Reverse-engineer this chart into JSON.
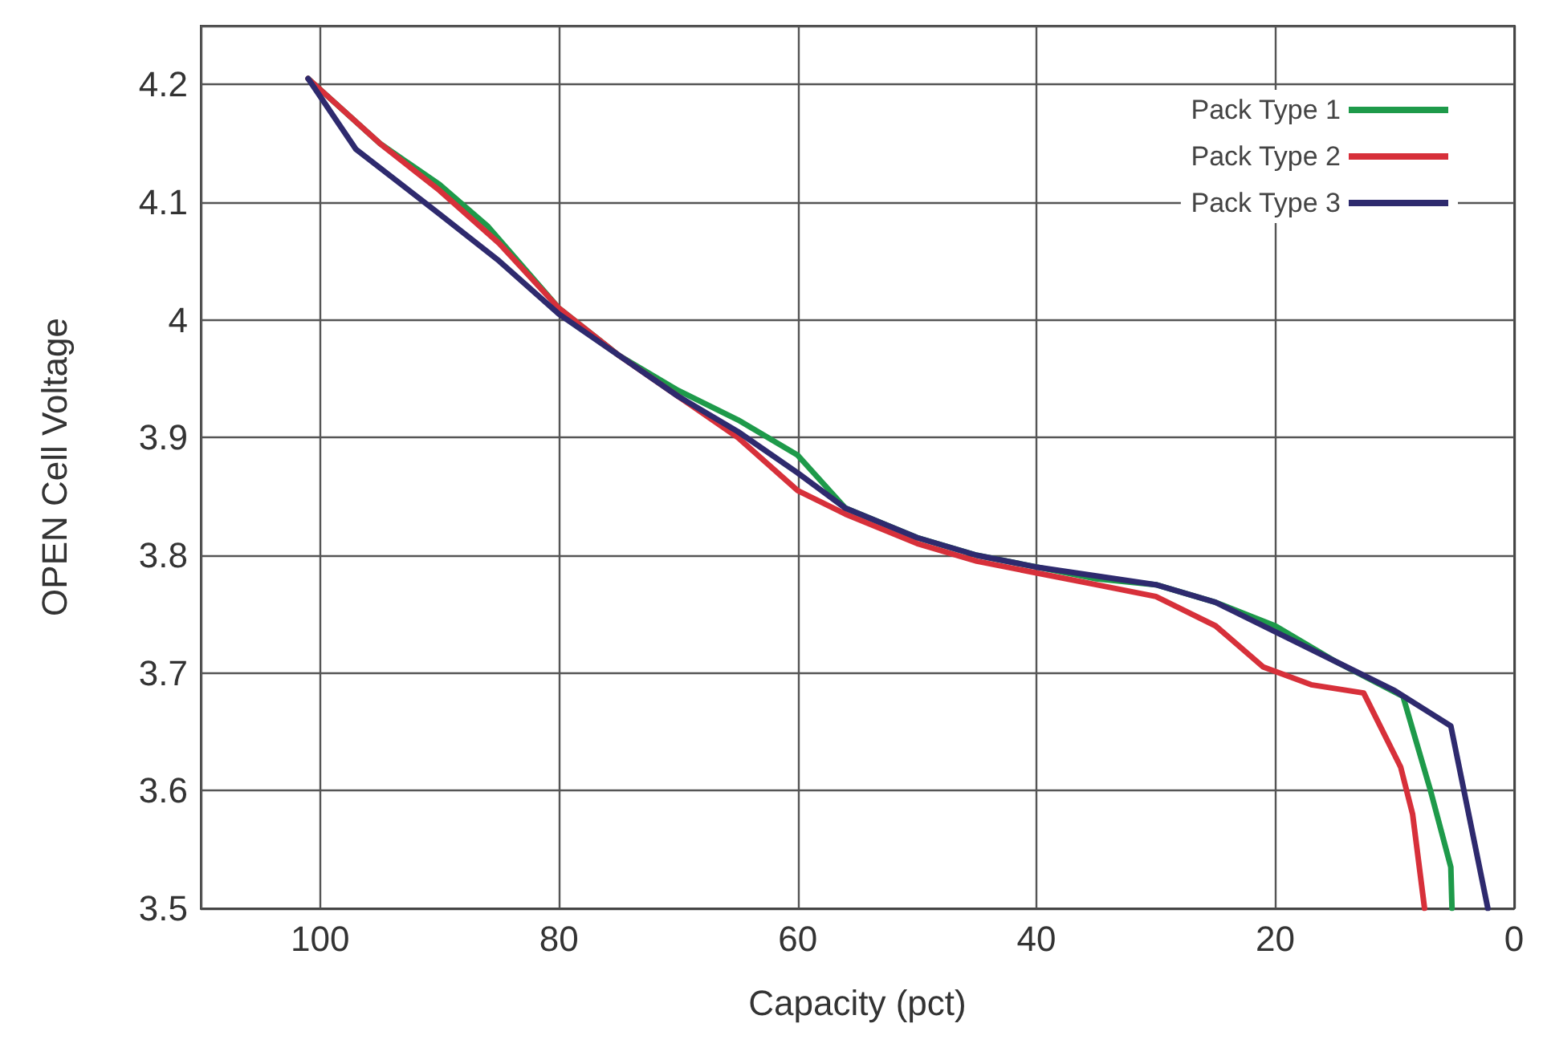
{
  "chart_data": {
    "type": "line",
    "xlabel": "Capacity (pct)",
    "ylabel": "OPEN Cell Voltage",
    "xlim": [
      110,
      0
    ],
    "xticks": [
      100,
      80,
      60,
      40,
      20,
      0
    ],
    "ylim": [
      3.5,
      4.25
    ],
    "yticks": [
      3.5,
      3.6,
      3.7,
      3.8,
      3.9,
      4,
      4.1,
      4.2
    ],
    "grid": true,
    "legend": "top right",
    "marker": "none",
    "line_style": "solid",
    "series": [
      {
        "name": "Pack Type 1",
        "color": "#1e9a4a",
        "x": [
          101,
          95,
          90,
          86,
          80,
          75,
          70,
          65,
          60,
          56,
          50,
          45,
          40,
          35,
          30,
          25,
          20,
          15,
          9.3,
          7,
          5.3,
          5.2
        ],
        "values": [
          4.205,
          4.15,
          4.115,
          4.08,
          4.01,
          3.97,
          3.94,
          3.915,
          3.885,
          3.84,
          3.815,
          3.8,
          3.79,
          3.78,
          3.775,
          3.76,
          3.74,
          3.71,
          3.68,
          3.6,
          3.535,
          3.5
        ]
      },
      {
        "name": "Pack Type 2",
        "color": "#d7303a",
        "x": [
          101,
          95,
          90,
          85,
          80,
          75,
          70,
          65,
          60,
          56,
          50,
          45,
          40,
          35,
          30,
          25,
          21,
          17,
          12.6,
          9.5,
          8.5,
          7.5
        ],
        "values": [
          4.205,
          4.15,
          4.11,
          4.065,
          4.01,
          3.97,
          3.935,
          3.9,
          3.855,
          3.835,
          3.81,
          3.795,
          3.785,
          3.775,
          3.765,
          3.74,
          3.705,
          3.69,
          3.683,
          3.62,
          3.58,
          3.5
        ]
      },
      {
        "name": "Pack Type 3",
        "color": "#2e2a6e",
        "x": [
          101,
          97,
          90,
          85,
          80,
          75,
          70,
          65,
          60,
          56,
          50,
          45,
          40,
          30,
          25,
          20,
          15,
          10,
          5.3,
          2.2
        ],
        "values": [
          4.205,
          4.145,
          4.09,
          4.05,
          4.005,
          3.97,
          3.935,
          3.905,
          3.87,
          3.84,
          3.815,
          3.8,
          3.79,
          3.775,
          3.76,
          3.735,
          3.71,
          3.685,
          3.655,
          3.5
        ]
      }
    ]
  }
}
